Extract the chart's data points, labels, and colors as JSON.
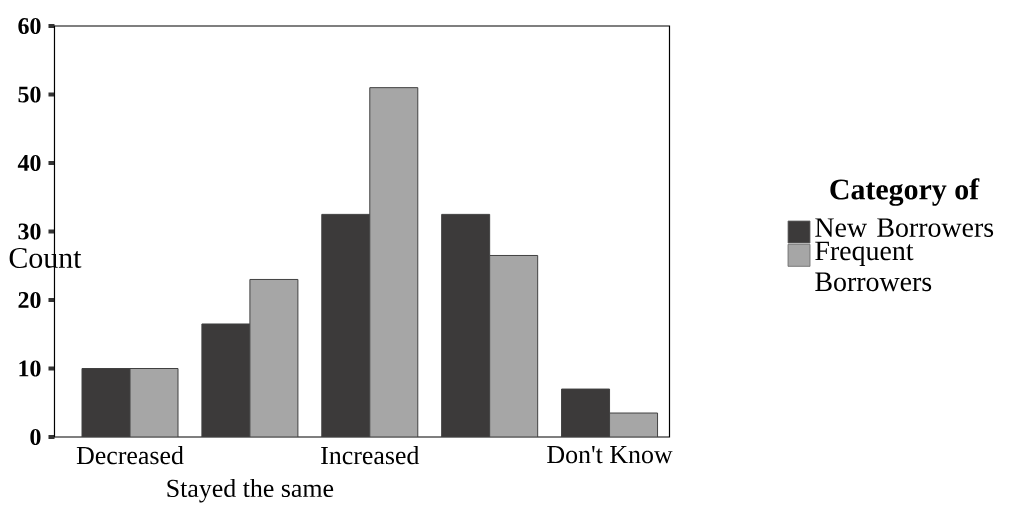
{
  "chart_data": {
    "type": "bar",
    "ylabel": "Count",
    "legend_title": "Category of",
    "categories": [
      "Decreased",
      "Stayed the same",
      "Increased",
      null,
      "Don't Know"
    ],
    "series": [
      {
        "name": "New Borrowers",
        "color": "#3c3a3a",
        "values": [
          10,
          16.5,
          32.5,
          32.5,
          7
        ]
      },
      {
        "name": "Frequent Borrowers",
        "color": "#a6a6a6",
        "values": [
          10,
          23,
          51,
          26.5,
          3.5
        ]
      }
    ],
    "ylim": [
      0,
      60
    ],
    "yticks": [
      0,
      10,
      20,
      30,
      40,
      50,
      60
    ],
    "grid": false,
    "legend": "right"
  }
}
